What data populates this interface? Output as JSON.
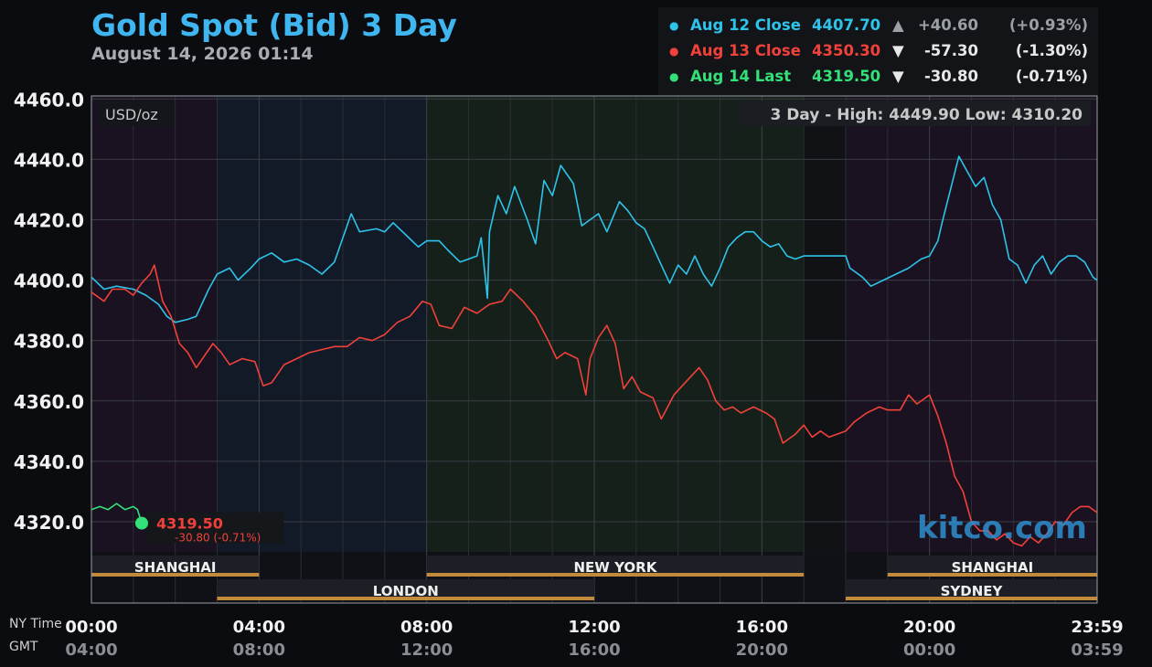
{
  "header": {
    "title": "Gold Spot (Bid) 3 Day",
    "date": "August 14, 2026 01:14"
  },
  "legend": [
    {
      "label": "Aug 12 Close",
      "price": "4407.70",
      "arrow": "▲",
      "change": "+40.60",
      "pct": "(+0.93%)",
      "color": "#2ec3ea",
      "arrow_color": "#9aa0a6",
      "change_color": "#9aa0a6"
    },
    {
      "label": "Aug 13 Close",
      "price": "4350.30",
      "arrow": "▼",
      "change": "-57.30",
      "pct": "(-1.30%)",
      "color": "#f0413a",
      "arrow_color": "#e8e8e8",
      "change_color": "#e8e8e8"
    },
    {
      "label": "Aug 14 Last",
      "price": "4319.50",
      "arrow": "▼",
      "change": "-30.80",
      "pct": "(-0.71%)",
      "color": "#34e07a",
      "arrow_color": "#e8e8e8",
      "change_color": "#e8e8e8"
    }
  ],
  "chart_data": {
    "type": "line",
    "unit_label": "USD/oz",
    "range_label": "3 Day - High: 4449.90  Low: 4310.20",
    "ylim": [
      4310,
      4461
    ],
    "y_ticks": [
      4460,
      4440,
      4420,
      4400,
      4380,
      4360,
      4340,
      4320
    ],
    "y_tick_labels": [
      "4460.0",
      "4440.0",
      "4420.0",
      "4400.0",
      "4380.0",
      "4360.0",
      "4340.0",
      "4320.0"
    ],
    "xlim": [
      0,
      24
    ],
    "x_ticks_ny": [
      {
        "h": 0,
        "label": "00:00"
      },
      {
        "h": 4,
        "label": "04:00"
      },
      {
        "h": 8,
        "label": "08:00"
      },
      {
        "h": 12,
        "label": "12:00"
      },
      {
        "h": 16,
        "label": "16:00"
      },
      {
        "h": 20,
        "label": "20:00"
      },
      {
        "h": 24,
        "label": "23:59"
      }
    ],
    "x_ticks_gmt": [
      "04:00",
      "08:00",
      "12:00",
      "16:00",
      "20:00",
      "00:00",
      "03:59"
    ],
    "time_labels": {
      "ny": "NY Time",
      "gmt": "GMT"
    },
    "sessions": [
      {
        "name": "SHANGHAI",
        "start": 0,
        "end": 4,
        "row": 1
      },
      {
        "name": "LONDON",
        "start": 3,
        "end": 12,
        "row": 2
      },
      {
        "name": "NEW YORK",
        "start": 8,
        "end": 17,
        "row": 1
      },
      {
        "name": "SYDNEY",
        "start": 18,
        "end": 24,
        "row": 2
      },
      {
        "name": "SHANGHAI",
        "start": 19,
        "end": 24,
        "row": 1
      }
    ],
    "series": [
      {
        "color": "#2ec3ea",
        "points": [
          [
            0,
            4401
          ],
          [
            0.3,
            4397
          ],
          [
            0.6,
            4398
          ],
          [
            1.0,
            4397
          ],
          [
            1.3,
            4395
          ],
          [
            1.6,
            4392
          ],
          [
            1.8,
            4388
          ],
          [
            2.0,
            4386
          ],
          [
            2.3,
            4387
          ],
          [
            2.5,
            4388
          ],
          [
            2.8,
            4397
          ],
          [
            3.0,
            4402
          ],
          [
            3.3,
            4404
          ],
          [
            3.5,
            4400
          ],
          [
            3.8,
            4404
          ],
          [
            4.0,
            4407
          ],
          [
            4.3,
            4409
          ],
          [
            4.6,
            4406
          ],
          [
            4.9,
            4407
          ],
          [
            5.2,
            4405
          ],
          [
            5.5,
            4402
          ],
          [
            5.8,
            4406
          ],
          [
            6.0,
            4414
          ],
          [
            6.2,
            4422
          ],
          [
            6.4,
            4416
          ],
          [
            6.8,
            4417
          ],
          [
            7.0,
            4416
          ],
          [
            7.2,
            4419
          ],
          [
            7.5,
            4415
          ],
          [
            7.8,
            4411
          ],
          [
            8.0,
            4413
          ],
          [
            8.3,
            4413
          ],
          [
            8.5,
            4410
          ],
          [
            8.8,
            4406
          ],
          [
            9.0,
            4407
          ],
          [
            9.2,
            4408
          ],
          [
            9.3,
            4414
          ],
          [
            9.45,
            4394
          ],
          [
            9.5,
            4416
          ],
          [
            9.7,
            4428
          ],
          [
            9.9,
            4422
          ],
          [
            10.1,
            4431
          ],
          [
            10.4,
            4420
          ],
          [
            10.6,
            4412
          ],
          [
            10.8,
            4433
          ],
          [
            11.0,
            4428
          ],
          [
            11.2,
            4438
          ],
          [
            11.5,
            4432
          ],
          [
            11.7,
            4418
          ],
          [
            11.9,
            4420
          ],
          [
            12.1,
            4422
          ],
          [
            12.3,
            4416
          ],
          [
            12.6,
            4426
          ],
          [
            12.8,
            4423
          ],
          [
            13.0,
            4419
          ],
          [
            13.2,
            4417
          ],
          [
            13.4,
            4411
          ],
          [
            13.6,
            4405
          ],
          [
            13.8,
            4399
          ],
          [
            14.0,
            4405
          ],
          [
            14.2,
            4402
          ],
          [
            14.4,
            4408
          ],
          [
            14.6,
            4402
          ],
          [
            14.8,
            4398
          ],
          [
            15.0,
            4404
          ],
          [
            15.2,
            4411
          ],
          [
            15.4,
            4414
          ],
          [
            15.6,
            4416
          ],
          [
            15.8,
            4416
          ],
          [
            16.0,
            4413
          ],
          [
            16.2,
            4411
          ],
          [
            16.4,
            4412
          ],
          [
            16.6,
            4408
          ],
          [
            16.8,
            4407
          ],
          [
            17.0,
            4408
          ],
          [
            18.0,
            4408
          ],
          [
            18.1,
            4404
          ],
          [
            18.4,
            4401
          ],
          [
            18.6,
            4398
          ],
          [
            18.9,
            4400
          ],
          [
            19.2,
            4402
          ],
          [
            19.5,
            4404
          ],
          [
            19.8,
            4407
          ],
          [
            20.0,
            4408
          ],
          [
            20.2,
            4413
          ],
          [
            20.3,
            4419
          ],
          [
            20.5,
            4430
          ],
          [
            20.7,
            4441
          ],
          [
            20.9,
            4436
          ],
          [
            21.1,
            4431
          ],
          [
            21.3,
            4434
          ],
          [
            21.5,
            4425
          ],
          [
            21.7,
            4420
          ],
          [
            21.9,
            4407
          ],
          [
            22.1,
            4405
          ],
          [
            22.3,
            4399
          ],
          [
            22.5,
            4405
          ],
          [
            22.7,
            4408
          ],
          [
            22.9,
            4402
          ],
          [
            23.1,
            4406
          ],
          [
            23.3,
            4408
          ],
          [
            23.5,
            4408
          ],
          [
            23.7,
            4406
          ],
          [
            23.9,
            4401
          ],
          [
            24.0,
            4400
          ]
        ]
      },
      {
        "color": "#f0413a",
        "points": [
          [
            0,
            4396
          ],
          [
            0.3,
            4393
          ],
          [
            0.5,
            4397
          ],
          [
            0.8,
            4397
          ],
          [
            1.0,
            4395
          ],
          [
            1.2,
            4399
          ],
          [
            1.4,
            4402
          ],
          [
            1.5,
            4405
          ],
          [
            1.7,
            4393
          ],
          [
            1.9,
            4388
          ],
          [
            2.1,
            4379
          ],
          [
            2.3,
            4376
          ],
          [
            2.5,
            4371
          ],
          [
            2.7,
            4375
          ],
          [
            2.9,
            4379
          ],
          [
            3.1,
            4376
          ],
          [
            3.3,
            4372
          ],
          [
            3.6,
            4374
          ],
          [
            3.9,
            4373
          ],
          [
            4.1,
            4365
          ],
          [
            4.3,
            4366
          ],
          [
            4.6,
            4372
          ],
          [
            4.9,
            4374
          ],
          [
            5.2,
            4376
          ],
          [
            5.5,
            4377
          ],
          [
            5.8,
            4378
          ],
          [
            6.1,
            4378
          ],
          [
            6.4,
            4381
          ],
          [
            6.7,
            4380
          ],
          [
            7.0,
            4382
          ],
          [
            7.3,
            4386
          ],
          [
            7.6,
            4388
          ],
          [
            7.9,
            4393
          ],
          [
            8.1,
            4392
          ],
          [
            8.3,
            4385
          ],
          [
            8.6,
            4384
          ],
          [
            8.9,
            4391
          ],
          [
            9.2,
            4389
          ],
          [
            9.5,
            4392
          ],
          [
            9.8,
            4393
          ],
          [
            10.0,
            4397
          ],
          [
            10.3,
            4393
          ],
          [
            10.6,
            4388
          ],
          [
            10.9,
            4380
          ],
          [
            11.1,
            4374
          ],
          [
            11.3,
            4376
          ],
          [
            11.6,
            4374
          ],
          [
            11.8,
            4362
          ],
          [
            11.9,
            4374
          ],
          [
            12.1,
            4381
          ],
          [
            12.3,
            4385
          ],
          [
            12.5,
            4379
          ],
          [
            12.7,
            4364
          ],
          [
            12.9,
            4368
          ],
          [
            13.1,
            4363
          ],
          [
            13.4,
            4361
          ],
          [
            13.6,
            4354
          ],
          [
            13.9,
            4362
          ],
          [
            14.1,
            4365
          ],
          [
            14.3,
            4368
          ],
          [
            14.5,
            4371
          ],
          [
            14.7,
            4367
          ],
          [
            14.9,
            4360
          ],
          [
            15.1,
            4357
          ],
          [
            15.3,
            4358
          ],
          [
            15.5,
            4356
          ],
          [
            15.8,
            4358
          ],
          [
            16.1,
            4356
          ],
          [
            16.3,
            4354
          ],
          [
            16.5,
            4346
          ],
          [
            16.8,
            4349
          ],
          [
            17.0,
            4352
          ],
          [
            17.2,
            4348
          ],
          [
            17.4,
            4350
          ],
          [
            17.6,
            4348
          ],
          [
            17.8,
            4349
          ],
          [
            18.0,
            4350
          ],
          [
            18.2,
            4353
          ],
          [
            18.5,
            4356
          ],
          [
            18.8,
            4358
          ],
          [
            19.0,
            4357
          ],
          [
            19.3,
            4357
          ],
          [
            19.5,
            4362
          ],
          [
            19.7,
            4359
          ],
          [
            19.9,
            4361
          ],
          [
            20.0,
            4362
          ],
          [
            20.2,
            4355
          ],
          [
            20.4,
            4346
          ],
          [
            20.6,
            4335
          ],
          [
            20.8,
            4330
          ],
          [
            21.0,
            4320
          ],
          [
            21.2,
            4317
          ],
          [
            21.4,
            4317
          ],
          [
            21.6,
            4314
          ],
          [
            21.8,
            4316
          ],
          [
            22.0,
            4313
          ],
          [
            22.2,
            4312
          ],
          [
            22.4,
            4315
          ],
          [
            22.6,
            4313
          ],
          [
            22.8,
            4316
          ],
          [
            23.0,
            4320
          ],
          [
            23.2,
            4319
          ],
          [
            23.4,
            4323
          ],
          [
            23.6,
            4325
          ],
          [
            23.8,
            4325
          ],
          [
            24.0,
            4323
          ]
        ]
      },
      {
        "color": "#34e07a",
        "points": [
          [
            0,
            4324
          ],
          [
            0.2,
            4325
          ],
          [
            0.4,
            4324
          ],
          [
            0.6,
            4326
          ],
          [
            0.8,
            4324
          ],
          [
            1.0,
            4325
          ],
          [
            1.1,
            4324
          ],
          [
            1.2,
            4319.5
          ]
        ]
      }
    ],
    "last": {
      "price": "4319.50",
      "change": "-30.80 (-0.71%)",
      "x": 1.2,
      "y": 4319.5
    }
  },
  "watermark": "kitco.com"
}
